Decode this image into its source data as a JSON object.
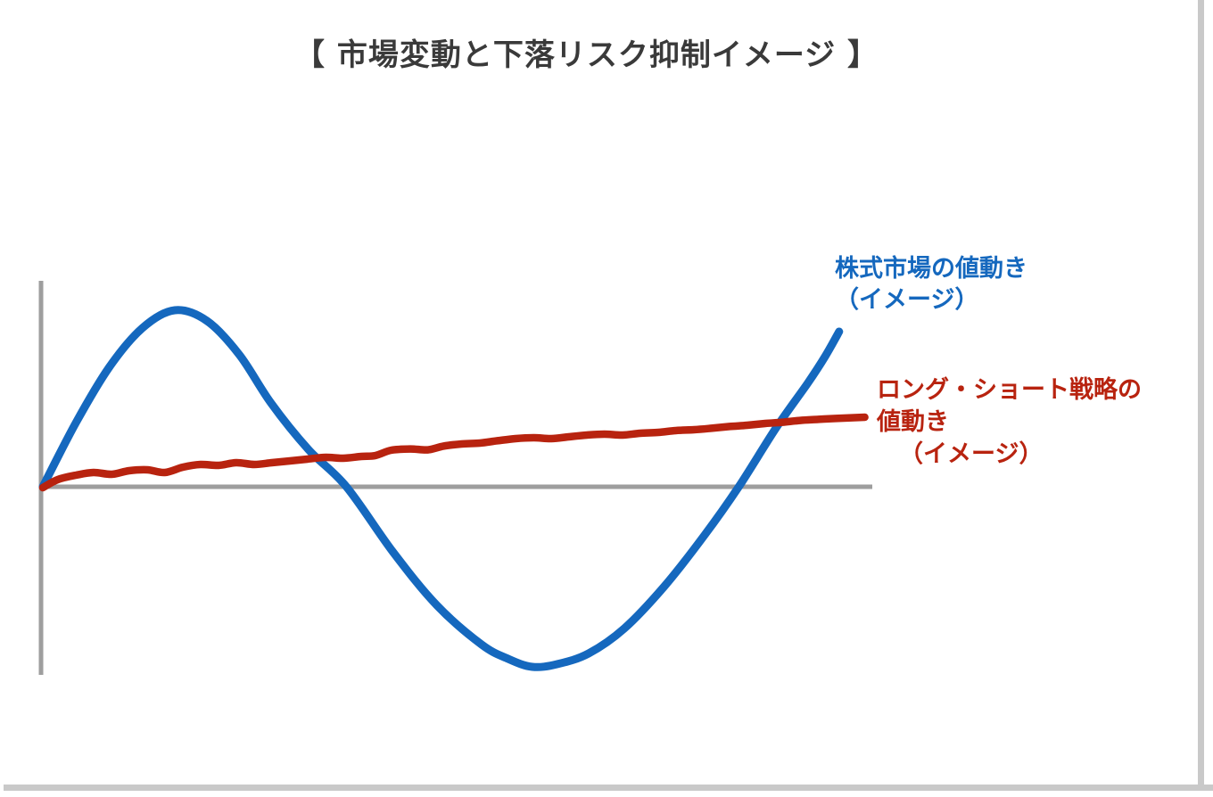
{
  "page": {
    "background": "#ffffff",
    "border_color": "#c9c9c9"
  },
  "title": {
    "text": "【 市場変動と下落リスク抑制イメージ 】",
    "color": "#3a3a3a"
  },
  "series_labels": {
    "stock": {
      "lines": [
        "株式市場の値動き",
        "（イメージ）"
      ],
      "color": "#1568be"
    },
    "long_short": {
      "lines": [
        "ロング・ショート戦略の",
        "値動き",
        "（イメージ）"
      ],
      "color": "#b8230f"
    }
  },
  "axes": {
    "color": "#9e9e9e",
    "baseline_value": 0,
    "grid": false,
    "tick_labels": []
  },
  "chart_data": {
    "type": "line",
    "title": "【 市場変動と下落リスク抑制イメージ 】",
    "xlabel": "",
    "ylabel": "",
    "x_range": [
      0,
      1
    ],
    "y_range": [
      -1.1,
      1.1
    ],
    "legend_position": "right-of-line-ends",
    "series": [
      {
        "name": "株式市場の値動き（イメージ）",
        "color": "#1568be",
        "stroke_width": 9,
        "points": [
          [
            0.0,
            0.0
          ],
          [
            0.04,
            0.36
          ],
          [
            0.08,
            0.67
          ],
          [
            0.12,
            0.89
          ],
          [
            0.159,
            0.99
          ],
          [
            0.198,
            0.93
          ],
          [
            0.237,
            0.74
          ],
          [
            0.275,
            0.47
          ],
          [
            0.32,
            0.21
          ],
          [
            0.366,
            0.0
          ],
          [
            0.422,
            -0.365
          ],
          [
            0.475,
            -0.665
          ],
          [
            0.529,
            -0.885
          ],
          [
            0.561,
            -0.965
          ],
          [
            0.59,
            -1.01
          ],
          [
            0.62,
            -0.995
          ],
          [
            0.658,
            -0.935
          ],
          [
            0.701,
            -0.795
          ],
          [
            0.749,
            -0.56
          ],
          [
            0.798,
            -0.27
          ],
          [
            0.839,
            0.0
          ],
          [
            0.884,
            0.33
          ],
          [
            0.922,
            0.58
          ],
          [
            0.943,
            0.73
          ],
          [
            0.96,
            0.87
          ]
        ]
      },
      {
        "name": "ロング・ショート戦略の値動き（イメージ）",
        "color": "#b8230f",
        "stroke_width": 8.5,
        "points": [
          [
            0.0,
            -0.005
          ],
          [
            0.018,
            0.04
          ],
          [
            0.04,
            0.065
          ],
          [
            0.061,
            0.08
          ],
          [
            0.083,
            0.07
          ],
          [
            0.104,
            0.09
          ],
          [
            0.126,
            0.095
          ],
          [
            0.147,
            0.08
          ],
          [
            0.169,
            0.11
          ],
          [
            0.19,
            0.125
          ],
          [
            0.212,
            0.12
          ],
          [
            0.233,
            0.135
          ],
          [
            0.255,
            0.125
          ],
          [
            0.276,
            0.135
          ],
          [
            0.298,
            0.145
          ],
          [
            0.319,
            0.155
          ],
          [
            0.341,
            0.165
          ],
          [
            0.362,
            0.16
          ],
          [
            0.384,
            0.17
          ],
          [
            0.401,
            0.175
          ],
          [
            0.42,
            0.205
          ],
          [
            0.443,
            0.212
          ],
          [
            0.464,
            0.207
          ],
          [
            0.483,
            0.228
          ],
          [
            0.505,
            0.24
          ],
          [
            0.527,
            0.245
          ],
          [
            0.548,
            0.258
          ],
          [
            0.57,
            0.27
          ],
          [
            0.592,
            0.275
          ],
          [
            0.613,
            0.27
          ],
          [
            0.634,
            0.28
          ],
          [
            0.656,
            0.29
          ],
          [
            0.677,
            0.295
          ],
          [
            0.699,
            0.29
          ],
          [
            0.72,
            0.3
          ],
          [
            0.742,
            0.305
          ],
          [
            0.763,
            0.315
          ],
          [
            0.785,
            0.32
          ],
          [
            0.806,
            0.328
          ],
          [
            0.828,
            0.338
          ],
          [
            0.849,
            0.345
          ],
          [
            0.871,
            0.355
          ],
          [
            0.892,
            0.362
          ],
          [
            0.913,
            0.372
          ],
          [
            0.935,
            0.378
          ],
          [
            0.956,
            0.383
          ],
          [
            0.991,
            0.39
          ]
        ]
      }
    ]
  }
}
